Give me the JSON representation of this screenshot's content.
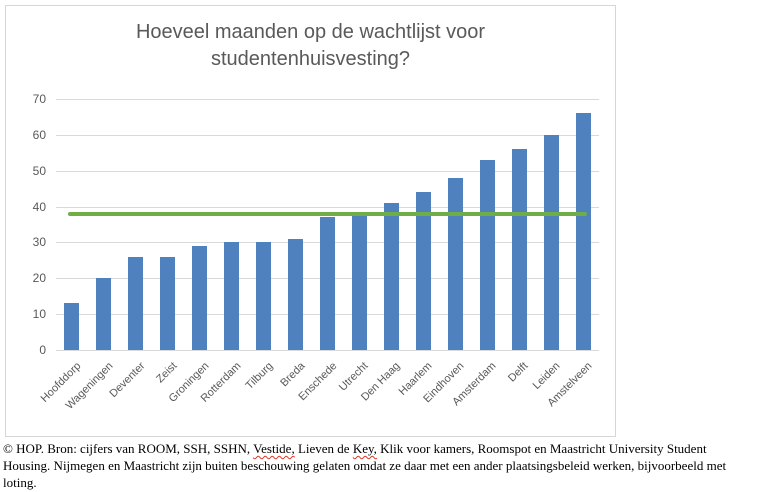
{
  "chart_data": {
    "type": "bar",
    "title": "Hoeveel maanden op de wachtlijst voor studentenhuisvesting?",
    "categories": [
      "Hoofddorp",
      "Wageningen",
      "Deventer",
      "Zeist",
      "Groningen",
      "Rotterdam",
      "Tilburg",
      "Breda",
      "Enschede",
      "Utrecht",
      "Den Haag",
      "Haarlem",
      "Eindhoven",
      "Amsterdam",
      "Delft",
      "Leiden",
      "Amstelveen"
    ],
    "values": [
      13,
      20,
      26,
      26,
      29,
      30,
      30,
      31,
      37,
      38,
      41,
      44,
      48,
      53,
      56,
      60,
      66
    ],
    "xlabel": "",
    "ylabel": "",
    "ylim": [
      0,
      70
    ],
    "yticks": [
      0,
      10,
      20,
      30,
      40,
      50,
      60,
      70
    ],
    "grid": true,
    "legend": "none",
    "bar_color": "#4E81BD",
    "reference_line": {
      "value": 38,
      "color": "#70AD47"
    }
  },
  "colors": {
    "title_text": "#595959",
    "axis_text": "#595959",
    "gridline": "#D9D9D9",
    "chart_border": "#D6D6D6"
  },
  "footer": {
    "lines": [
      {
        "segments": [
          {
            "text": "© HOP. Bron: cijfers van ROOM, SSH, SSHN, ",
            "misspelled": false
          },
          {
            "text": "Vestide,",
            "misspelled": true
          },
          {
            "text": " Lieven de ",
            "misspelled": false
          },
          {
            "text": "Key,",
            "misspelled": true
          },
          {
            "text": " Klik voor kamers, Roomspot en Maastricht University Student",
            "misspelled": false
          }
        ]
      },
      {
        "segments": [
          {
            "text": "Housing. Nijmegen en Maastricht zijn buiten beschouwing gelaten omdat ze daar met een ander plaatsingsbeleid werken, bijvoorbeeld met",
            "misspelled": false
          }
        ]
      },
      {
        "segments": [
          {
            "text": "loting.",
            "misspelled": false
          }
        ]
      }
    ]
  }
}
